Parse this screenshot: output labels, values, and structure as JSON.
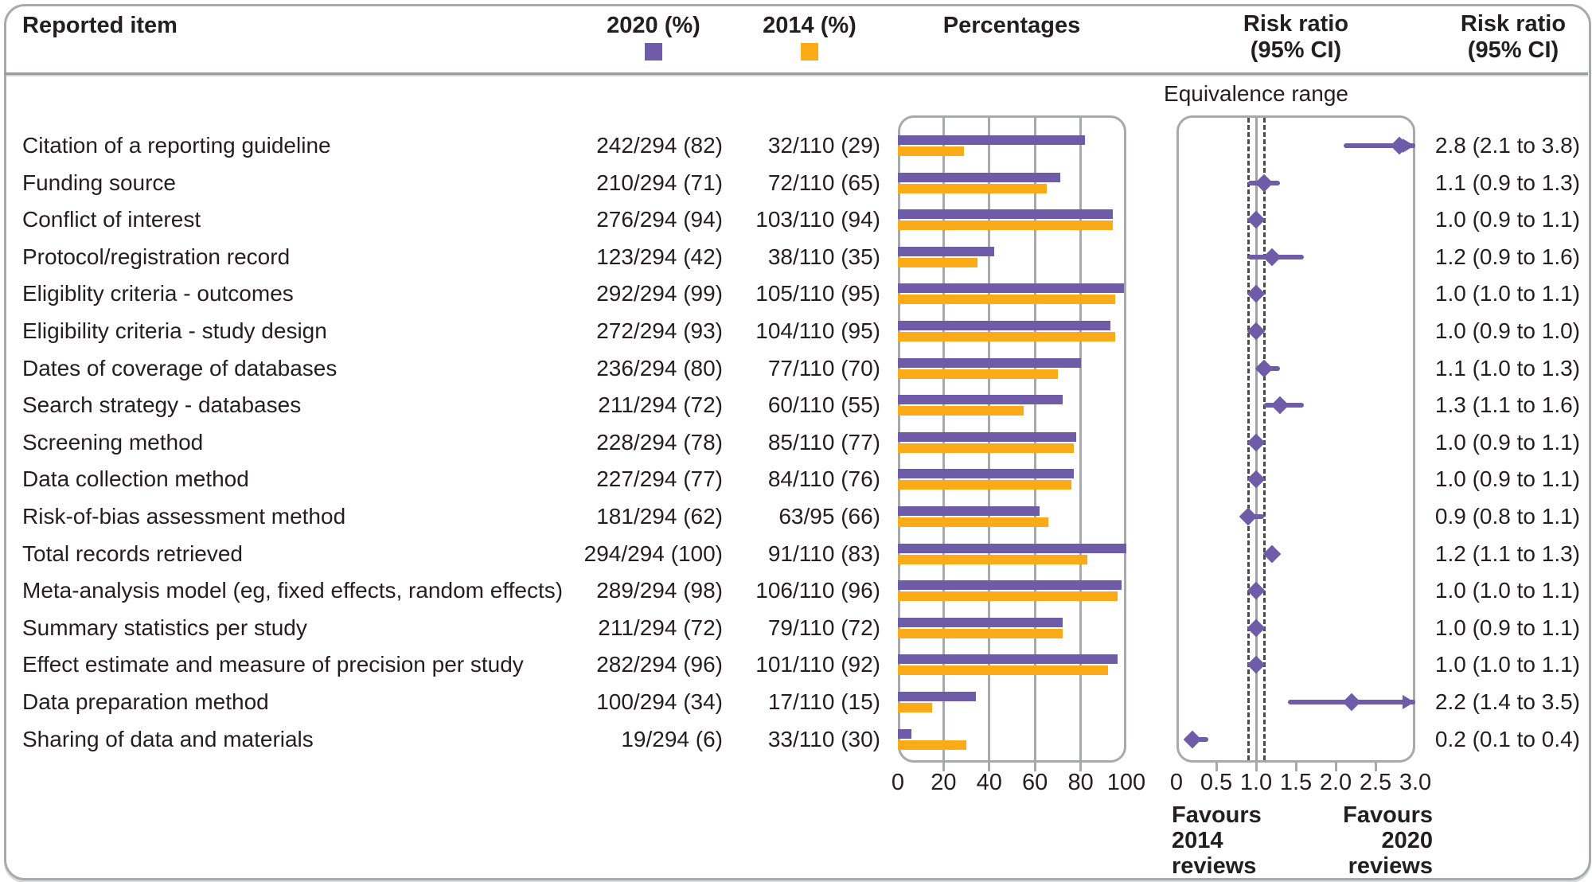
{
  "header": {
    "reported_item": "Reported item",
    "col_2020": "2020 (%)",
    "col_2014": "2014 (%)",
    "col_percentages": "Percentages",
    "risk_ratio_line1": "Risk ratio",
    "risk_ratio_line2": "(95% CI)"
  },
  "annotations": {
    "equivalence_label": "Equivalence range",
    "favours_left": "Favours\n2014\nreviews",
    "favours_right": "Favours\n2020\nreviews"
  },
  "colors": {
    "purple_2020": "#6f5ca8",
    "orange_2014": "#fbab18",
    "text": "#231f20",
    "panel_border": "#a7a9ac",
    "null_line": "#a0a2a5",
    "equivalence_dash": "#4a4a4c"
  },
  "chart_data": {
    "type": "bar",
    "subtype": "paired-horizontal-bars-with-forest-plot",
    "series_legend": [
      {
        "name": "2020 (%)",
        "color": "#6f5ca8"
      },
      {
        "name": "2014 (%)",
        "color": "#fbab18"
      }
    ],
    "pct_axis": {
      "ticks": [
        0,
        20,
        40,
        60,
        80,
        100
      ],
      "min": 0,
      "max": 100,
      "grid": true
    },
    "rr_axis": {
      "ticks": [
        {
          "v": 0,
          "t": "0"
        },
        {
          "v": 0.5,
          "t": "0.5"
        },
        {
          "v": 1,
          "t": "1.0"
        },
        {
          "v": 1.5,
          "t": "1.5"
        },
        {
          "v": 2,
          "t": "2.0"
        },
        {
          "v": 2.5,
          "t": "2.5"
        },
        {
          "v": 3,
          "t": "3.0"
        }
      ],
      "min": 0,
      "max": 3,
      "null_line": 1.0,
      "equivalence_low": 0.9,
      "equivalence_high": 1.1
    },
    "rows": [
      {
        "label": "Citation of a reporting guideline",
        "n2020": "242/294 (82)",
        "n2014": "32/110 (29)",
        "pct2020": 82,
        "pct2014": 29,
        "rr": 2.8,
        "ci_low": 2.1,
        "ci_high": 3.8,
        "rr_text": "2.8 (2.1 to 3.8)"
      },
      {
        "label": "Funding source",
        "n2020": "210/294 (71)",
        "n2014": "72/110 (65)",
        "pct2020": 71,
        "pct2014": 65,
        "rr": 1.1,
        "ci_low": 0.9,
        "ci_high": 1.3,
        "rr_text": "1.1 (0.9 to 1.3)"
      },
      {
        "label": "Conflict of interest",
        "n2020": "276/294 (94)",
        "n2014": "103/110 (94)",
        "pct2020": 94,
        "pct2014": 94,
        "rr": 1.0,
        "ci_low": 0.9,
        "ci_high": 1.1,
        "rr_text": "1.0 (0.9 to 1.1)"
      },
      {
        "label": "Protocol/registration record",
        "n2020": "123/294 (42)",
        "n2014": "38/110 (35)",
        "pct2020": 42,
        "pct2014": 35,
        "rr": 1.2,
        "ci_low": 0.9,
        "ci_high": 1.6,
        "rr_text": "1.2 (0.9 to 1.6)"
      },
      {
        "label": "Eligiblity criteria - outcomes",
        "n2020": "292/294 (99)",
        "n2014": "105/110 (95)",
        "pct2020": 99,
        "pct2014": 95,
        "rr": 1.0,
        "ci_low": 1.0,
        "ci_high": 1.1,
        "rr_text": "1.0 (1.0 to 1.1)"
      },
      {
        "label": "Eligibility criteria - study design",
        "n2020": "272/294 (93)",
        "n2014": "104/110 (95)",
        "pct2020": 93,
        "pct2014": 95,
        "rr": 1.0,
        "ci_low": 0.9,
        "ci_high": 1.0,
        "rr_text": "1.0 (0.9 to 1.0)"
      },
      {
        "label": "Dates of coverage of databases",
        "n2020": "236/294 (80)",
        "n2014": "77/110 (70)",
        "pct2020": 80,
        "pct2014": 70,
        "rr": 1.1,
        "ci_low": 1.0,
        "ci_high": 1.3,
        "rr_text": "1.1 (1.0 to 1.3)"
      },
      {
        "label": "Search strategy - databases",
        "n2020": "211/294 (72)",
        "n2014": "60/110 (55)",
        "pct2020": 72,
        "pct2014": 55,
        "rr": 1.3,
        "ci_low": 1.1,
        "ci_high": 1.6,
        "rr_text": "1.3 (1.1 to 1.6)"
      },
      {
        "label": "Screening method",
        "n2020": "228/294 (78)",
        "n2014": "85/110 (77)",
        "pct2020": 78,
        "pct2014": 77,
        "rr": 1.0,
        "ci_low": 0.9,
        "ci_high": 1.1,
        "rr_text": "1.0 (0.9 to 1.1)"
      },
      {
        "label": "Data collection method",
        "n2020": "227/294 (77)",
        "n2014": "84/110 (76)",
        "pct2020": 77,
        "pct2014": 76,
        "rr": 1.0,
        "ci_low": 0.9,
        "ci_high": 1.1,
        "rr_text": "1.0 (0.9 to 1.1)"
      },
      {
        "label": "Risk-of-bias assessment method",
        "n2020": "181/294 (62)",
        "n2014": "63/95 (66)",
        "pct2020": 62,
        "pct2014": 66,
        "rr": 0.9,
        "ci_low": 0.8,
        "ci_high": 1.1,
        "rr_text": "0.9 (0.8 to 1.1)"
      },
      {
        "label": "Total records retrieved",
        "n2020": "294/294 (100)",
        "n2014": "91/110 (83)",
        "pct2020": 100,
        "pct2014": 83,
        "rr": 1.2,
        "ci_low": 1.1,
        "ci_high": 1.3,
        "rr_text": "1.2 (1.1 to 1.3)"
      },
      {
        "label": "Meta-analysis model (eg, fixed effects, random effects)",
        "n2020": "289/294 (98)",
        "n2014": "106/110 (96)",
        "pct2020": 98,
        "pct2014": 96,
        "rr": 1.0,
        "ci_low": 1.0,
        "ci_high": 1.1,
        "rr_text": "1.0 (1.0 to 1.1)"
      },
      {
        "label": "Summary statistics per study",
        "n2020": "211/294 (72)",
        "n2014": "79/110 (72)",
        "pct2020": 72,
        "pct2014": 72,
        "rr": 1.0,
        "ci_low": 0.9,
        "ci_high": 1.1,
        "rr_text": "1.0 (0.9 to 1.1)"
      },
      {
        "label": "Effect estimate and measure of precision per study",
        "n2020": "282/294 (96)",
        "n2014": "101/110 (92)",
        "pct2020": 96,
        "pct2014": 92,
        "rr": 1.0,
        "ci_low": 1.0,
        "ci_high": 1.1,
        "rr_text": "1.0 (1.0 to 1.1)"
      },
      {
        "label": "Data preparation method",
        "n2020": "100/294 (34)",
        "n2014": "17/110 (15)",
        "pct2020": 34,
        "pct2014": 15,
        "rr": 2.2,
        "ci_low": 1.4,
        "ci_high": 3.5,
        "rr_text": "2.2 (1.4 to 3.5)"
      },
      {
        "label": "Sharing of data and materials",
        "n2020": "19/294 (6)",
        "n2014": "33/110 (30)",
        "pct2020": 6,
        "pct2014": 30,
        "rr": 0.2,
        "ci_low": 0.1,
        "ci_high": 0.4,
        "rr_text": "0.2 (0.1 to 0.4)"
      }
    ]
  }
}
